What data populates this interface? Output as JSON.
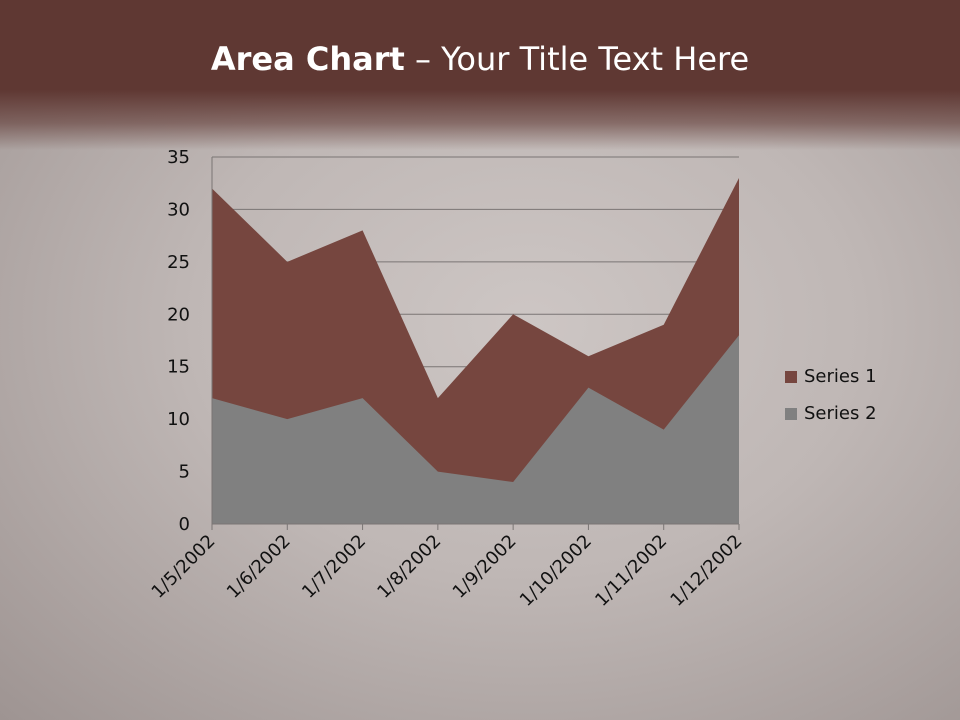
{
  "title": {
    "bold": "Area Chart",
    "rest": " – Your Title Text Here"
  },
  "chart_data": {
    "type": "area",
    "categories": [
      "1/5/2002",
      "1/6/2002",
      "1/7/2002",
      "1/8/2002",
      "1/9/2002",
      "1/10/2002",
      "1/11/2002",
      "1/12/2002"
    ],
    "series": [
      {
        "name": "Series 1",
        "values": [
          32,
          25,
          28,
          12,
          20,
          16,
          19,
          33
        ],
        "color": "#76463f"
      },
      {
        "name": "Series 2",
        "values": [
          12,
          10,
          12,
          5,
          4,
          13,
          9,
          18
        ],
        "color": "#808080"
      }
    ],
    "ylim": [
      0,
      35
    ],
    "yticks": [
      0,
      5,
      10,
      15,
      20,
      25,
      30,
      35
    ],
    "grid": true,
    "legend": "right"
  }
}
